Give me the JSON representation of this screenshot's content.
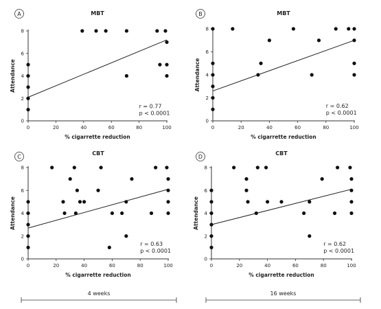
{
  "chart_data": [
    {
      "type": "scatter",
      "panel_label": "A",
      "title": "MBT",
      "xlabel": "% cigarrette reduction",
      "ylabel": "Attendance",
      "xlim": [
        0,
        100
      ],
      "ylim": [
        0,
        8
      ],
      "xticks": [
        0,
        20,
        40,
        60,
        80,
        100
      ],
      "yticks": [
        0,
        2,
        4,
        6,
        8
      ],
      "points": [
        [
          0,
          1
        ],
        [
          0,
          2
        ],
        [
          0,
          3
        ],
        [
          0,
          4
        ],
        [
          0,
          5
        ],
        [
          39,
          8
        ],
        [
          49,
          8
        ],
        [
          56,
          8
        ],
        [
          71,
          8
        ],
        [
          71,
          4
        ],
        [
          93,
          8
        ],
        [
          95,
          5
        ],
        [
          99,
          8
        ],
        [
          100,
          7
        ],
        [
          100,
          5
        ],
        [
          100,
          4
        ]
      ],
      "fit_line": [
        [
          0,
          2.1
        ],
        [
          100,
          7.2
        ]
      ],
      "stats": [
        "r = 0.77",
        "p < 0.0001"
      ]
    },
    {
      "type": "scatter",
      "panel_label": "B",
      "title": "MBT",
      "xlabel": "% cigarrette reduction",
      "ylabel": "Attendance",
      "xlim": [
        0,
        100
      ],
      "ylim": [
        0,
        8
      ],
      "xticks": [
        0,
        20,
        40,
        60,
        80,
        100
      ],
      "yticks": [
        0,
        2,
        4,
        6,
        8
      ],
      "points": [
        [
          0,
          1
        ],
        [
          0,
          2
        ],
        [
          0,
          3
        ],
        [
          0,
          4
        ],
        [
          0,
          5
        ],
        [
          0,
          8
        ],
        [
          14,
          8
        ],
        [
          32,
          4
        ],
        [
          34,
          5
        ],
        [
          40,
          7
        ],
        [
          57,
          8
        ],
        [
          70,
          4
        ],
        [
          75,
          7
        ],
        [
          87,
          8
        ],
        [
          96,
          8
        ],
        [
          100,
          8
        ],
        [
          100,
          7
        ],
        [
          100,
          5
        ],
        [
          100,
          4
        ]
      ],
      "fit_line": [
        [
          0,
          2.6
        ],
        [
          100,
          7.0
        ]
      ],
      "stats": [
        "r = 0.62",
        "p < 0.0001"
      ]
    },
    {
      "type": "scatter",
      "panel_label": "C",
      "title": "CBT",
      "xlabel": "% cigarrette reduction",
      "ylabel": "Attendance",
      "xlim": [
        0,
        100
      ],
      "ylim": [
        0,
        8
      ],
      "xticks": [
        0,
        20,
        40,
        60,
        80,
        100
      ],
      "yticks": [
        0,
        2,
        4,
        6,
        8
      ],
      "points": [
        [
          0,
          1
        ],
        [
          0,
          2
        ],
        [
          0,
          3
        ],
        [
          0,
          4
        ],
        [
          0,
          5
        ],
        [
          17,
          8
        ],
        [
          25,
          5
        ],
        [
          26,
          4
        ],
        [
          30,
          7
        ],
        [
          33,
          8
        ],
        [
          34,
          4
        ],
        [
          35,
          6
        ],
        [
          37,
          5
        ],
        [
          40,
          5
        ],
        [
          50,
          6
        ],
        [
          52,
          8
        ],
        [
          58,
          1
        ],
        [
          60,
          4
        ],
        [
          67,
          4
        ],
        [
          70,
          5
        ],
        [
          70,
          2
        ],
        [
          74,
          7
        ],
        [
          88,
          4
        ],
        [
          91,
          8
        ],
        [
          99,
          8
        ],
        [
          100,
          7
        ],
        [
          100,
          6
        ],
        [
          100,
          5
        ],
        [
          100,
          4
        ]
      ],
      "fit_line": [
        [
          0,
          2.7
        ],
        [
          100,
          6.1
        ]
      ],
      "stats": [
        "r = 0.63",
        "p < 0.0001"
      ]
    },
    {
      "type": "scatter",
      "panel_label": "D",
      "title": "CBT",
      "xlabel": "% cigarrette reduction",
      "ylabel": "Attendance",
      "xlim": [
        0,
        100
      ],
      "ylim": [
        0,
        8
      ],
      "xticks": [
        0,
        20,
        40,
        60,
        80,
        100
      ],
      "yticks": [
        0,
        2,
        4,
        6,
        8
      ],
      "points": [
        [
          0,
          1
        ],
        [
          0,
          2
        ],
        [
          0,
          3
        ],
        [
          0,
          4
        ],
        [
          0,
          5
        ],
        [
          0,
          6
        ],
        [
          16,
          8
        ],
        [
          25,
          7
        ],
        [
          25,
          6
        ],
        [
          26,
          5
        ],
        [
          32,
          4
        ],
        [
          33,
          8
        ],
        [
          39,
          8
        ],
        [
          40,
          5
        ],
        [
          50,
          5
        ],
        [
          66,
          4
        ],
        [
          70,
          5
        ],
        [
          70,
          2
        ],
        [
          79,
          7
        ],
        [
          88,
          4
        ],
        [
          90,
          8
        ],
        [
          99,
          8
        ],
        [
          100,
          7
        ],
        [
          100,
          6
        ],
        [
          100,
          5
        ],
        [
          100,
          4
        ]
      ],
      "fit_line": [
        [
          0,
          3.0
        ],
        [
          100,
          6.1
        ]
      ],
      "stats": [
        "r = 0.62",
        "p < 0.0001"
      ]
    }
  ],
  "durations": [
    {
      "label": "4 weeks"
    },
    {
      "label": "16 weeks"
    }
  ]
}
